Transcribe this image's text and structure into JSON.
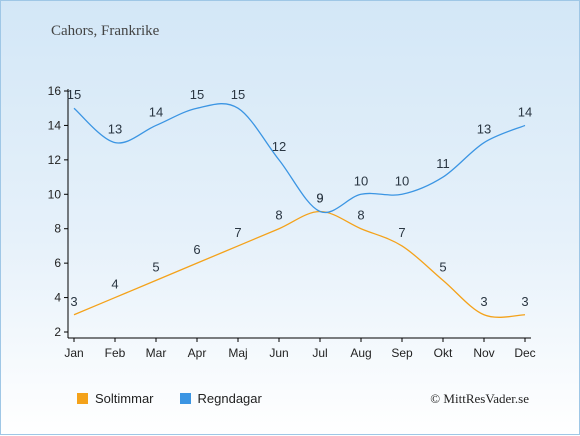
{
  "header": {
    "title": "Cahors, Frankrike"
  },
  "footer": {
    "copyright": "© MittResVader.se"
  },
  "colors": {
    "sun": "#f4a21a",
    "rain": "#3b95e3"
  },
  "chart_data": {
    "type": "line",
    "title": "Cahors, Frankrike",
    "categories": [
      "Jan",
      "Feb",
      "Mar",
      "Apr",
      "Maj",
      "Jun",
      "Jul",
      "Aug",
      "Sep",
      "Okt",
      "Nov",
      "Dec"
    ],
    "yticks": [
      "2",
      "4",
      "6",
      "8",
      "10",
      "12",
      "14",
      "16"
    ],
    "ylim": [
      2,
      16
    ],
    "grid": false,
    "legend": "bottom-left",
    "series": [
      {
        "name": "Soltimmar",
        "values": [
          3,
          4,
          5,
          6,
          7,
          8,
          9,
          8,
          7,
          5,
          3,
          3
        ]
      },
      {
        "name": "Regndagar",
        "values": [
          15,
          13,
          14,
          15,
          15,
          12,
          9,
          10,
          10,
          11,
          13,
          14
        ]
      }
    ]
  }
}
